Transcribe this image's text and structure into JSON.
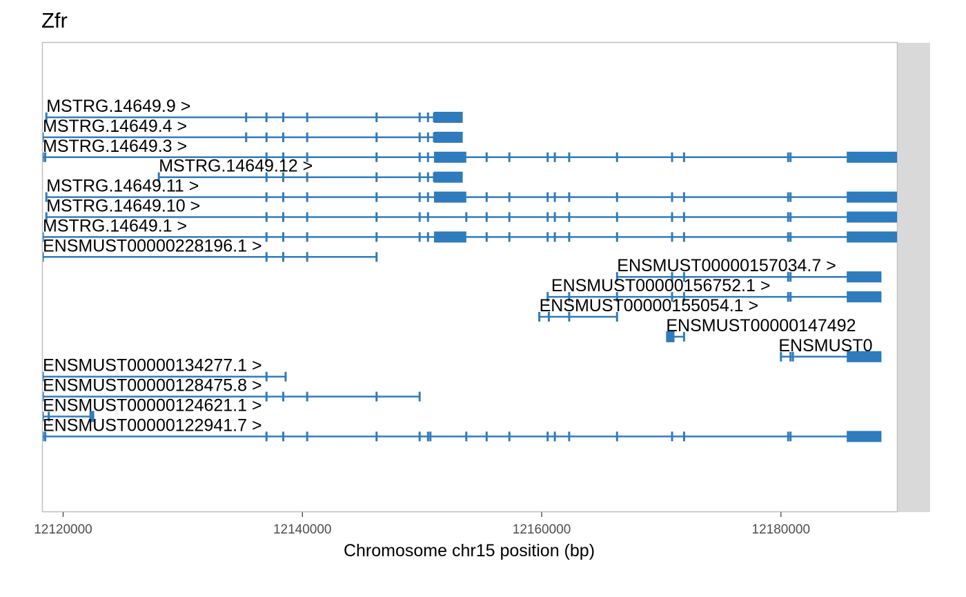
{
  "chart_data": {
    "type": "gene-track",
    "title": "Zfr",
    "xlabel": "Chromosome chr15 position (bp)",
    "ylabel": "",
    "xlim": [
      12118300,
      12189700
    ],
    "x_ticks": [
      12120000,
      12140000,
      12160000,
      12180000
    ],
    "x_tick_labels": [
      "12120000",
      "12140000",
      "12160000",
      "12180000"
    ],
    "grid": false,
    "legend": "none",
    "colors": {
      "feature": "#2e7bbd",
      "panel_border": "#bfbfbf",
      "strip": "#d9d9d9",
      "tick_text": "#4d4d4d"
    },
    "transcripts": [
      {
        "label": "MSTRG.14649.9 >",
        "start": 12118600,
        "end": 12152200,
        "row": 0,
        "label_x": 12118600,
        "utr": [],
        "cds": [
          [
            12151000,
            12153400
          ]
        ],
        "ticks": [
          12118600,
          12135300,
          12137000,
          12138400,
          12140400,
          12146200,
          12149800,
          12150500,
          12151000
        ]
      },
      {
        "label": "MSTRG.14649.4 >",
        "start": 12118300,
        "end": 12152200,
        "row": 1,
        "label_x": 12118300,
        "utr": [],
        "cds": [
          [
            12151000,
            12153400
          ]
        ],
        "ticks": [
          12118300,
          12135300,
          12137000,
          12138400,
          12140400,
          12146200,
          12149800,
          12150500,
          12151000
        ]
      },
      {
        "label": "MSTRG.14649.3 >",
        "start": 12118300,
        "end": 12189700,
        "row": 2,
        "label_x": 12118300,
        "utr": [],
        "cds": [
          [
            12151000,
            12153700
          ],
          [
            12185500,
            12189700
          ]
        ],
        "ticks": [
          12118300,
          12118500,
          12137000,
          12138400,
          12140400,
          12146200,
          12149800,
          12150500,
          12155400,
          12157300,
          12160500,
          12161100,
          12162300,
          12166300,
          12170900,
          12171900,
          12180600,
          12180800
        ]
      },
      {
        "label": "MSTRG.14649.12 >",
        "start": 12128000,
        "end": 12152200,
        "row": 3,
        "label_x": 12128000,
        "utr": [],
        "cds": [
          [
            12151000,
            12153400
          ]
        ],
        "ticks": [
          12128000,
          12137000,
          12138400,
          12140400,
          12146200,
          12149800,
          12150500,
          12151000
        ]
      },
      {
        "label": "MSTRG.14649.11 >",
        "start": 12118600,
        "end": 12189700,
        "row": 4,
        "label_x": 12118600,
        "utr": [],
        "cds": [
          [
            12151000,
            12153700
          ],
          [
            12185500,
            12189700
          ]
        ],
        "ticks": [
          12118600,
          12137000,
          12138400,
          12140400,
          12146200,
          12149800,
          12150500,
          12155400,
          12157300,
          12160500,
          12161100,
          12162300,
          12166300,
          12170900,
          12171900,
          12180600,
          12180800
        ]
      },
      {
        "label": "MSTRG.14649.10 >",
        "start": 12118600,
        "end": 12189700,
        "row": 5,
        "label_x": 12118600,
        "utr": [],
        "cds": [
          [
            12185500,
            12189700
          ]
        ],
        "ticks": [
          12118600,
          12137000,
          12138400,
          12140400,
          12146200,
          12149800,
          12150500,
          12153700,
          12155400,
          12157300,
          12160500,
          12161100,
          12162300,
          12166300,
          12170900,
          12171900,
          12180600,
          12180800
        ]
      },
      {
        "label": "MSTRG.14649.1 >",
        "start": 12118300,
        "end": 12189700,
        "row": 6,
        "label_x": 12118300,
        "utr": [],
        "cds": [
          [
            12151000,
            12153700
          ],
          [
            12185500,
            12189700
          ]
        ],
        "ticks": [
          12118300,
          12137000,
          12138400,
          12140400,
          12146200,
          12149800,
          12150500,
          12155400,
          12157300,
          12160500,
          12161100,
          12162300,
          12166300,
          12170900,
          12171900,
          12180600,
          12180800
        ]
      },
      {
        "label": "ENSMUST00000228196.1 >",
        "start": 12118300,
        "end": 12146200,
        "row": 7,
        "label_x": 12118300,
        "utr": [],
        "cds": [],
        "ticks": [
          12118300,
          12137000,
          12138400,
          12140400,
          12146200
        ]
      },
      {
        "label": "ENSMUST00000157034.7 >",
        "start": 12166300,
        "end": 12188400,
        "row": 8,
        "label_x": 12166300,
        "utr": [],
        "cds": [
          [
            12185500,
            12188400
          ]
        ],
        "ticks": [
          12166300,
          12170900,
          12171900,
          12180600,
          12180800
        ]
      },
      {
        "label": "ENSMUST00000156752.1 >",
        "start": 12160500,
        "end": 12188400,
        "row": 9,
        "label_x": 12160800,
        "utr": [],
        "cds": [
          [
            12185500,
            12188400
          ]
        ],
        "ticks": [
          12160500,
          12162300,
          12166300,
          12170900,
          12171900,
          12180600,
          12180800
        ]
      },
      {
        "label": "ENSMUST00000155054.1 >",
        "start": 12159800,
        "end": 12166300,
        "row": 10,
        "label_x": 12159800,
        "utr": [],
        "cds": [],
        "ticks": [
          12159800,
          12160600,
          12162300,
          12166300
        ]
      },
      {
        "label": "ENSMUST00000147492",
        "start": 12170400,
        "end": 12171900,
        "row": 11,
        "label_x": 12170400,
        "utr": [],
        "cds": [
          [
            12170400,
            12171100
          ]
        ],
        "ticks": [
          12171900
        ]
      },
      {
        "label": "ENSMUST0",
        "start": 12180000,
        "end": 12188400,
        "row": 12,
        "label_x": 12179800,
        "utr": [],
        "cds": [
          [
            12185500,
            12188400
          ]
        ],
        "ticks": [
          12180000,
          12180800,
          12181000
        ]
      },
      {
        "label": "ENSMUST00000134277.1 >",
        "start": 12118300,
        "end": 12138600,
        "row": 13,
        "label_x": 12118300,
        "utr": [],
        "cds": [],
        "ticks": [
          12118300,
          12137000,
          12138600
        ]
      },
      {
        "label": "ENSMUST00000128475.8 >",
        "start": 12118300,
        "end": 12149800,
        "row": 14,
        "label_x": 12118300,
        "utr": [],
        "cds": [],
        "ticks": [
          12118300,
          12137000,
          12138400,
          12140400,
          12146200,
          12149800
        ]
      },
      {
        "label": "ENSMUST00000124621.1 >",
        "start": 12118300,
        "end": 12122600,
        "row": 15,
        "label_x": 12118300,
        "utr": [],
        "cds": [
          [
            12122200,
            12122600
          ]
        ],
        "ticks": [
          12118300,
          12118800
        ]
      },
      {
        "label": "ENSMUST00000122941.7 >",
        "start": 12118300,
        "end": 12188400,
        "row": 16,
        "label_x": 12118300,
        "utr": [],
        "cds": [
          [
            12185500,
            12188400
          ]
        ],
        "ticks": [
          12118300,
          12118500,
          12137000,
          12138400,
          12140400,
          12146200,
          12149800,
          12150500,
          12150700,
          12153700,
          12155400,
          12157300,
          12160500,
          12161100,
          12162300,
          12166300,
          12170900,
          12171900,
          12180600,
          12180800
        ]
      }
    ]
  }
}
